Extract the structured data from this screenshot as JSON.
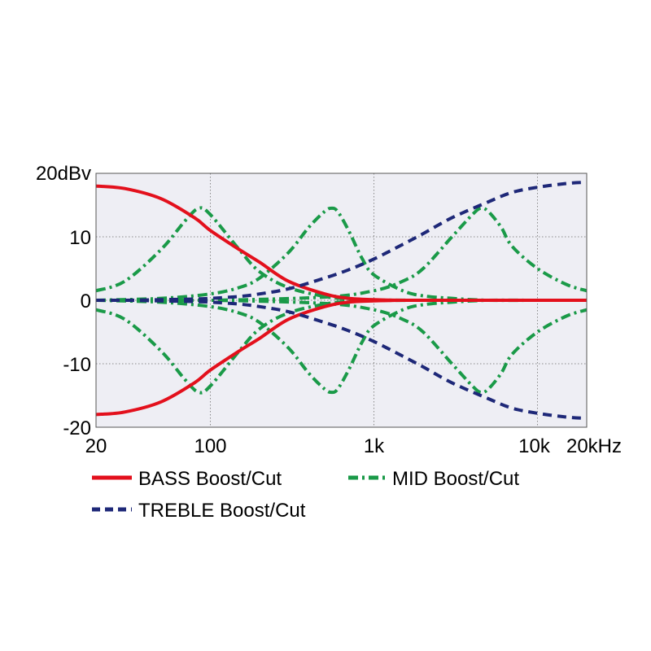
{
  "chart_data": {
    "type": "line",
    "x_scale": "log",
    "xlim": [
      20,
      20000
    ],
    "ylim": [
      -20,
      20
    ],
    "grid": true,
    "legend_position": "bottom",
    "x_ticks": [
      {
        "value": 20,
        "label": "20"
      },
      {
        "value": 100,
        "label": "100"
      },
      {
        "value": 1000,
        "label": "1k"
      },
      {
        "value": 10000,
        "label": "10k"
      },
      {
        "value": 20000,
        "label": "20kHz"
      }
    ],
    "y_ticks": [
      {
        "value": 20,
        "label": "20dBv"
      },
      {
        "value": 10,
        "label": "10"
      },
      {
        "value": 0,
        "label": "0"
      },
      {
        "value": -10,
        "label": "-10"
      },
      {
        "value": -20,
        "label": "-20"
      }
    ],
    "x": [
      20,
      30,
      50,
      80,
      100,
      150,
      200,
      300,
      500,
      700,
      1000,
      1500,
      2000,
      3000,
      5000,
      7000,
      10000,
      15000,
      20000
    ],
    "series": [
      {
        "name": "BASS Boost/Cut",
        "style": "solid",
        "color": "#e3101c",
        "values": [
          18,
          17.6,
          16,
          13,
          11,
          8,
          6,
          3,
          1,
          0.3,
          0.1,
          0,
          0,
          0,
          0,
          0,
          0,
          0,
          0
        ]
      },
      {
        "name": "BASS Boost/Cut",
        "style": "solid",
        "color": "#e3101c",
        "values": [
          -18,
          -17.6,
          -16,
          -13,
          -11,
          -8,
          -6,
          -3,
          -1,
          -0.3,
          -0.1,
          0,
          0,
          0,
          0,
          0,
          0,
          0,
          0
        ]
      },
      {
        "name": "TREBLE Boost/Cut",
        "style": "dashed",
        "color": "#1e2878",
        "values": [
          0,
          0,
          0.1,
          0.2,
          0.3,
          0.6,
          1,
          1.8,
          3.5,
          4.8,
          6.5,
          8.8,
          10.5,
          13,
          15.5,
          17,
          17.8,
          18.4,
          18.6
        ]
      },
      {
        "name": "TREBLE Boost/Cut",
        "style": "dashed",
        "color": "#1e2878",
        "values": [
          0,
          0,
          -0.1,
          -0.2,
          -0.3,
          -0.6,
          -1,
          -1.8,
          -3.5,
          -4.8,
          -6.5,
          -8.8,
          -10.5,
          -13,
          -15.5,
          -17,
          -17.8,
          -18.4,
          -18.6
        ]
      }
    ],
    "mid_series": [
      {
        "name": "MID Boost/Cut",
        "style": "dashdot",
        "color": "#1a9a48",
        "x": [
          20,
          30,
          50,
          70,
          85,
          100,
          150,
          200,
          300,
          500,
          700,
          1000,
          2000,
          3000,
          5000,
          7000,
          10000,
          20000
        ],
        "values": [
          1.5,
          3,
          8,
          12.5,
          14.5,
          13.5,
          8,
          4.5,
          2,
          0.6,
          0.2,
          0,
          0,
          0,
          0,
          0,
          0,
          0
        ]
      },
      {
        "name": "MID Boost/Cut",
        "style": "dashdot",
        "color": "#1a9a48",
        "x": [
          20,
          30,
          50,
          70,
          85,
          100,
          150,
          200,
          300,
          500,
          700,
          1000,
          2000,
          3000,
          5000,
          7000,
          10000,
          20000
        ],
        "values": [
          -1.5,
          -3,
          -8,
          -12.5,
          -14.5,
          -13.5,
          -8,
          -4.5,
          -2,
          -0.6,
          -0.2,
          0,
          0,
          0,
          0,
          0,
          0,
          0
        ]
      },
      {
        "name": "MID Boost/Cut",
        "style": "dashdot",
        "color": "#1a9a48",
        "x": [
          20,
          50,
          100,
          150,
          200,
          300,
          400,
          500,
          550,
          600,
          700,
          850,
          1000,
          1500,
          2000,
          3000,
          5000,
          10000,
          20000
        ],
        "values": [
          0,
          0.3,
          1,
          2,
          3.5,
          7.5,
          11.5,
          14,
          14.5,
          14,
          11,
          6.5,
          4,
          1.5,
          0.7,
          0.3,
          0,
          0,
          0
        ]
      },
      {
        "name": "MID Boost/Cut",
        "style": "dashdot",
        "color": "#1a9a48",
        "x": [
          20,
          50,
          100,
          150,
          200,
          300,
          400,
          500,
          550,
          600,
          700,
          850,
          1000,
          1500,
          2000,
          3000,
          5000,
          10000,
          20000
        ],
        "values": [
          0,
          -0.3,
          -1,
          -2,
          -3.5,
          -7.5,
          -11.5,
          -14,
          -14.5,
          -14,
          -11,
          -6.5,
          -4,
          -1.5,
          -0.7,
          -0.3,
          0,
          0,
          0
        ]
      },
      {
        "name": "MID Boost/Cut",
        "style": "dashdot",
        "color": "#1a9a48",
        "x": [
          20,
          100,
          500,
          1000,
          1500,
          2000,
          3000,
          4000,
          4500,
          5000,
          6000,
          7000,
          10000,
          15000,
          20000
        ],
        "values": [
          0,
          0,
          0.5,
          1.5,
          3,
          5,
          10,
          13.5,
          14.5,
          14,
          11.5,
          8.5,
          5,
          2.5,
          1.5
        ]
      },
      {
        "name": "MID Boost/Cut",
        "style": "dashdot",
        "color": "#1a9a48",
        "x": [
          20,
          100,
          500,
          1000,
          1500,
          2000,
          3000,
          4000,
          4500,
          5000,
          6000,
          7000,
          10000,
          15000,
          20000
        ],
        "values": [
          0,
          0,
          -0.5,
          -1.5,
          -3,
          -5,
          -10,
          -13.5,
          -14.5,
          -14,
          -11.5,
          -8.5,
          -5,
          -2.5,
          -1.5
        ]
      }
    ],
    "legend": [
      {
        "label": "BASS Boost/Cut",
        "style": "solid",
        "color": "#e3101c"
      },
      {
        "label": "MID Boost/Cut",
        "style": "dashdot",
        "color": "#1a9a48"
      },
      {
        "label": "TREBLE Boost/Cut",
        "style": "dashed",
        "color": "#1e2878"
      }
    ],
    "colors": {
      "plot_background": "#eeeef4",
      "grid": "#8a8a8a"
    }
  }
}
